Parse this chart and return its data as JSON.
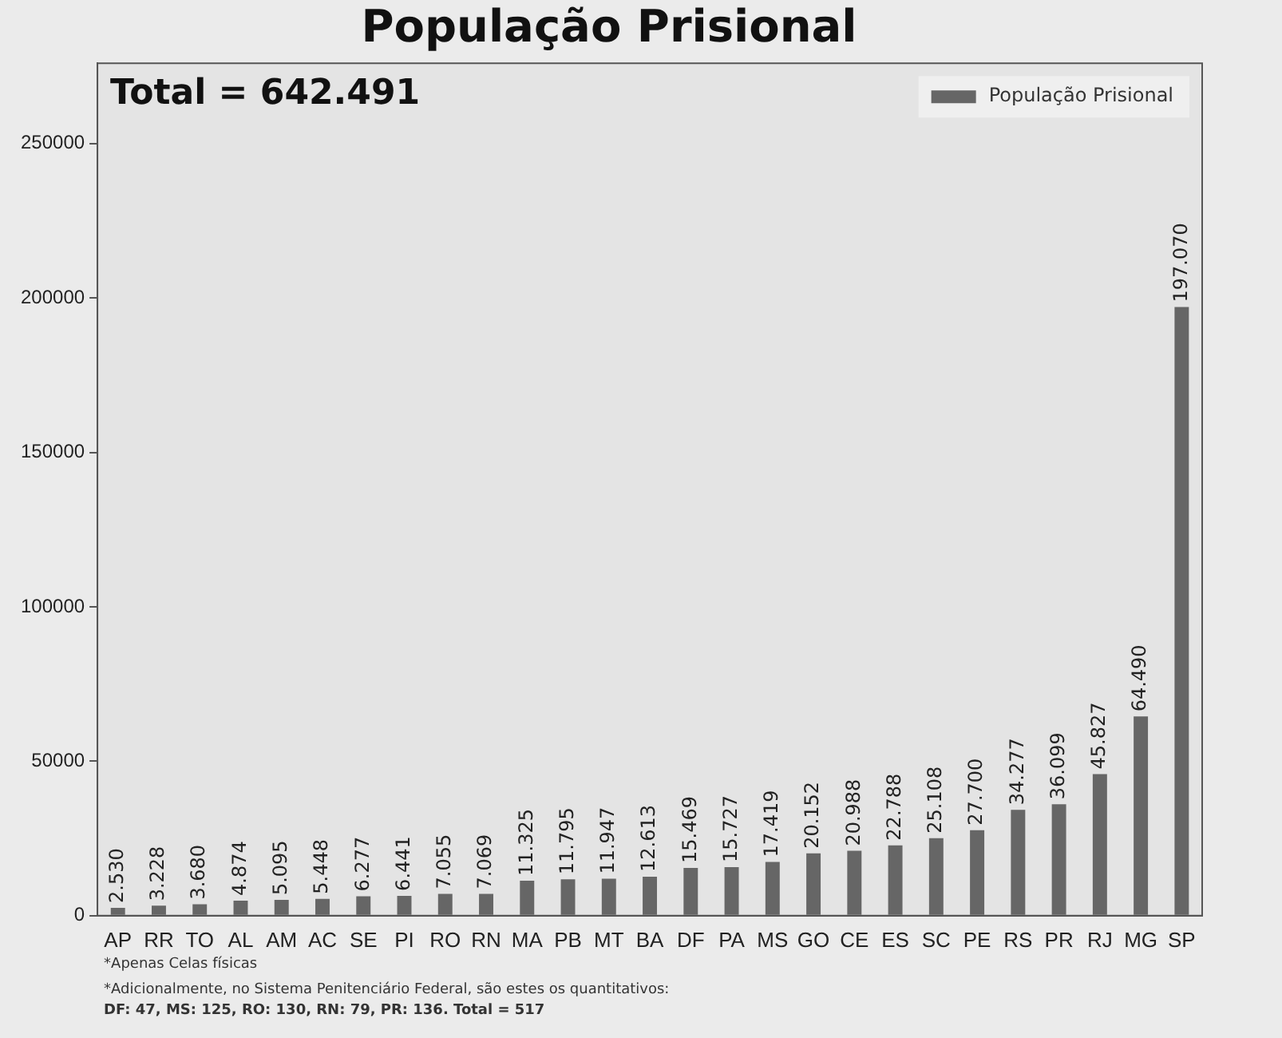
{
  "chart_data": {
    "type": "bar",
    "title": "População Prisional",
    "categories": [
      "AP",
      "RR",
      "TO",
      "AL",
      "AM",
      "AC",
      "SE",
      "PI",
      "RO",
      "RN",
      "MA",
      "PB",
      "MT",
      "BA",
      "DF",
      "PA",
      "MS",
      "GO",
      "CE",
      "ES",
      "SC",
      "PE",
      "RS",
      "PR",
      "RJ",
      "MG",
      "SP"
    ],
    "series": [
      {
        "name": "População Prisional",
        "color": "#666666",
        "values": [
          2530,
          3228,
          3680,
          4874,
          5095,
          5448,
          6277,
          6441,
          7055,
          7069,
          11325,
          11795,
          11947,
          12613,
          15469,
          15727,
          17419,
          20152,
          20988,
          22788,
          25108,
          27700,
          34277,
          36099,
          45827,
          64490,
          197070
        ],
        "value_labels": [
          "2.530",
          "3.228",
          "3.680",
          "4.874",
          "5.095",
          "5.448",
          "6.277",
          "6.441",
          "7.055",
          "7.069",
          "11.325",
          "11.795",
          "11.947",
          "12.613",
          "15.469",
          "15.727",
          "17.419",
          "20.152",
          "20.988",
          "22.788",
          "25.108",
          "27.700",
          "34.277",
          "36.099",
          "45.827",
          "64.490",
          "197.070"
        ]
      }
    ],
    "ylim": [
      0,
      276000
    ],
    "yticks": [
      0,
      50000,
      100000,
      150000,
      200000,
      250000
    ],
    "grid": false,
    "legend": "top right",
    "annotations": [
      "Total = 642.491",
      "*Apenas Celas físicas",
      "*Adicionalmente, no Sistema Penitenciário Federal, são estes os quantitativos:",
      "DF: 47, MS: 125, RO: 130, RN: 79, PR: 136. Total = 517"
    ]
  }
}
